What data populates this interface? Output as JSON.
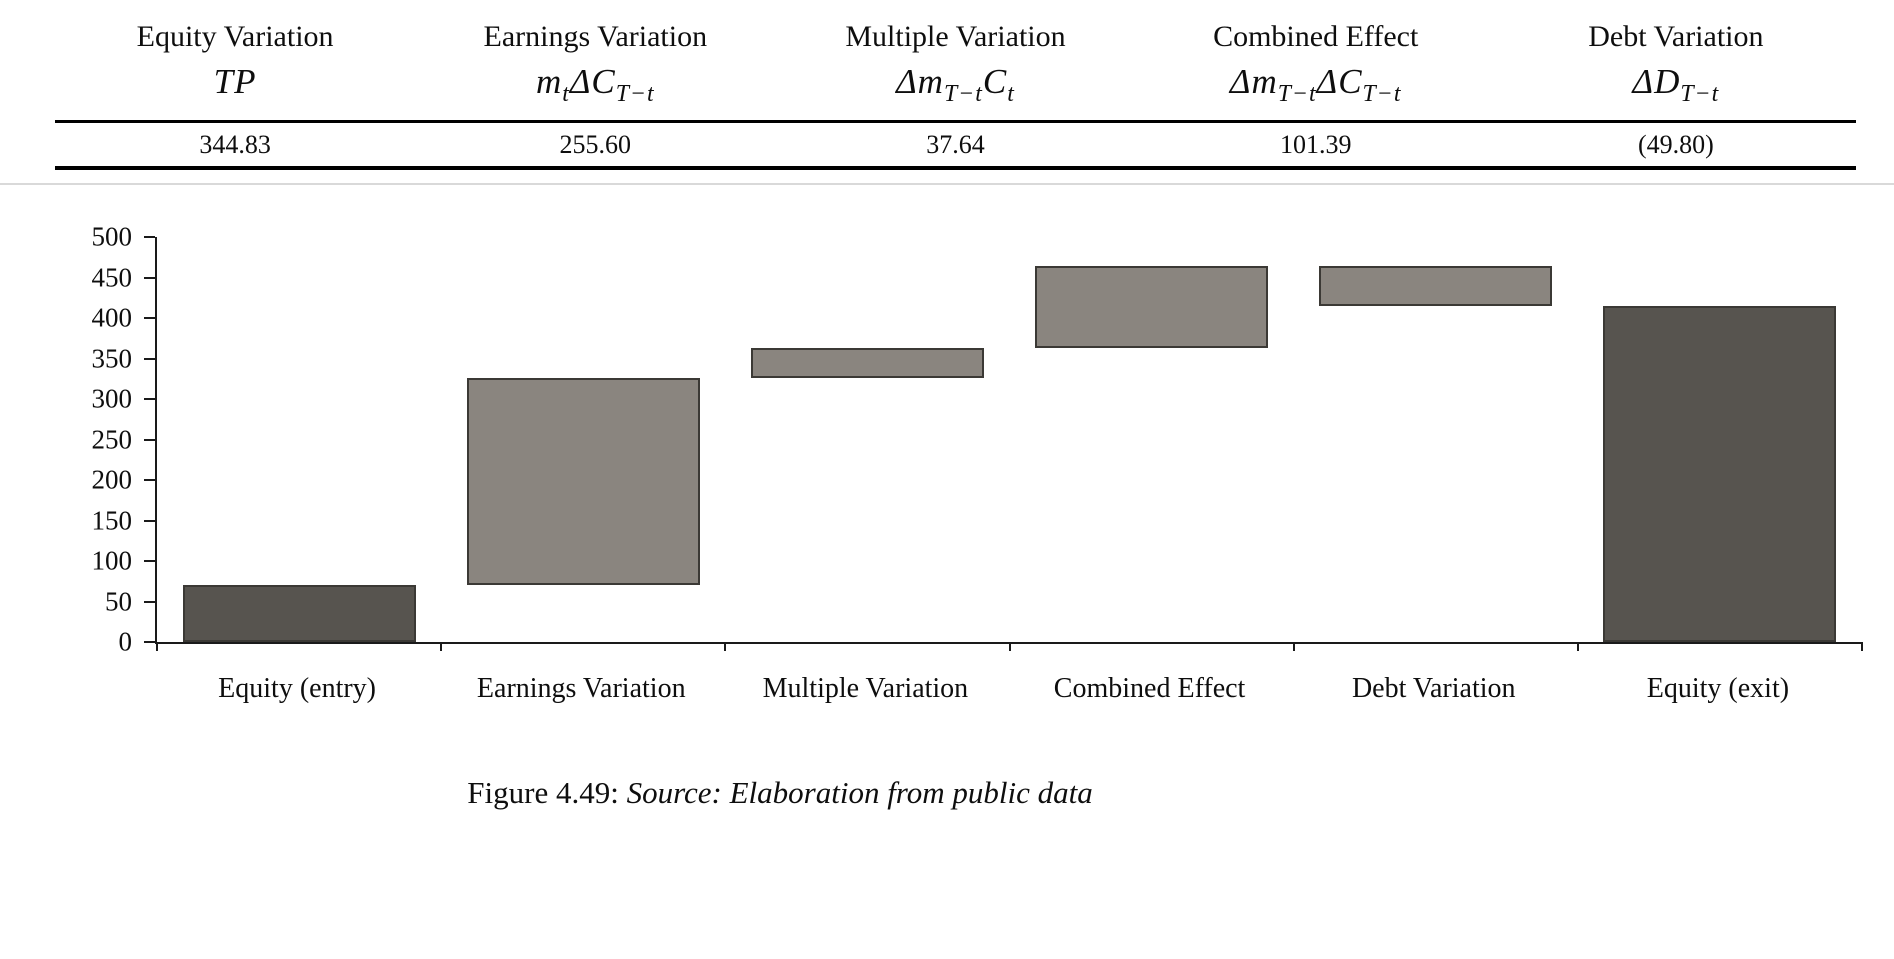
{
  "table": {
    "columns": [
      {
        "title": "Equity Variation",
        "formula": "TP",
        "value": "344.83"
      },
      {
        "title": "Earnings Variation",
        "formula": "m_{t}ΔC_{T−t}",
        "value": "255.60"
      },
      {
        "title": "Multiple Variation",
        "formula": "Δm_{T−t}C_{t}",
        "value": "37.64"
      },
      {
        "title": "Combined Effect",
        "formula": "Δm_{T−t}ΔC_{T−t}",
        "value": "101.39"
      },
      {
        "title": "Debt Variation",
        "formula": "ΔD_{T−t}",
        "value": "(49.80)"
      }
    ]
  },
  "chart_data": {
    "type": "bar",
    "subtype": "waterfall",
    "title": "",
    "xlabel": "",
    "ylabel": "",
    "grid": false,
    "legend": null,
    "ylim": [
      0,
      500
    ],
    "ytick_step": 50,
    "categories": [
      "Equity (entry)",
      "Earnings Variation",
      "Multiple Variation",
      "Combined Effect",
      "Debt Variation",
      "Equity (exit)"
    ],
    "bars": [
      {
        "label": "Equity (entry)",
        "start": 0,
        "end": 70.17,
        "value": 70.17,
        "style": "dark"
      },
      {
        "label": "Earnings Variation",
        "start": 70.17,
        "end": 325.77,
        "value": 255.6,
        "style": "light"
      },
      {
        "label": "Multiple Variation",
        "start": 325.77,
        "end": 363.41,
        "value": 37.64,
        "style": "light"
      },
      {
        "label": "Combined Effect",
        "start": 363.41,
        "end": 464.8,
        "value": 101.39,
        "style": "light"
      },
      {
        "label": "Debt Variation",
        "start": 415.0,
        "end": 464.8,
        "value": -49.8,
        "style": "light"
      },
      {
        "label": "Equity (exit)",
        "start": 0,
        "end": 415.0,
        "value": 415.0,
        "style": "dark"
      }
    ],
    "colors": {
      "dark": "#57544f",
      "light": "#8a857f",
      "border": "#3b3935",
      "axis": "#1a1a1a"
    }
  },
  "caption": {
    "label": "Figure 4.49:",
    "source": "Source: Elaboration from public data"
  }
}
